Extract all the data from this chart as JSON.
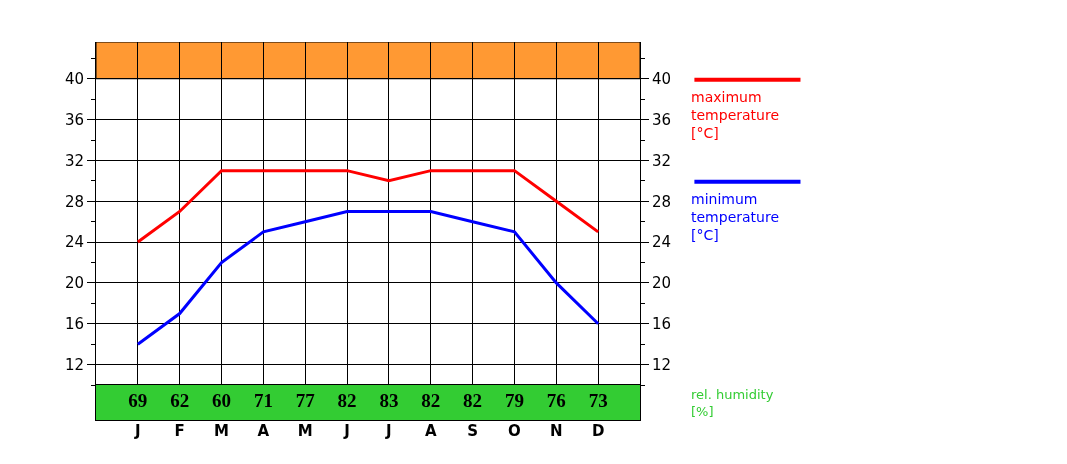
{
  "chart_data": [
    {
      "type": "line",
      "categories": [
        "J",
        "F",
        "M",
        "A",
        "M",
        "J",
        "J",
        "A",
        "S",
        "O",
        "N",
        "D"
      ],
      "series": [
        {
          "name": "maximum temperature [°C]",
          "color": "#ff0000",
          "values": [
            24,
            27,
            31,
            31,
            31,
            31,
            30,
            31,
            31,
            31,
            28,
            25
          ]
        },
        {
          "name": "minimum temperature [°C]",
          "color": "#0000ff",
          "values": [
            14,
            17,
            22,
            25,
            26,
            27,
            27,
            27,
            26,
            25,
            20,
            16
          ]
        }
      ],
      "ylim": [
        10,
        43.6
      ],
      "yticks": [
        12,
        16,
        20,
        24,
        28,
        32,
        36,
        40
      ],
      "y2lim": [
        10,
        43.6
      ],
      "y2ticks": [
        12,
        16,
        20,
        24,
        28,
        32,
        36,
        40
      ],
      "bands": [
        {
          "axis": "y",
          "from": 40,
          "to": 43.6,
          "color": "#ff9933"
        }
      ],
      "grid": true,
      "legend": "right",
      "marker": "none",
      "line_style": "solid"
    },
    {
      "type": "other",
      "categories": [
        null,
        null,
        null,
        null,
        null,
        null,
        null,
        null,
        null,
        null,
        null,
        null
      ],
      "values": [
        69,
        62,
        60,
        71,
        77,
        82,
        83,
        82,
        82,
        79,
        76,
        73
      ],
      "color": "#33cc33",
      "ylabel": "rel. humidity [%]",
      "data_labels": true
    }
  ]
}
